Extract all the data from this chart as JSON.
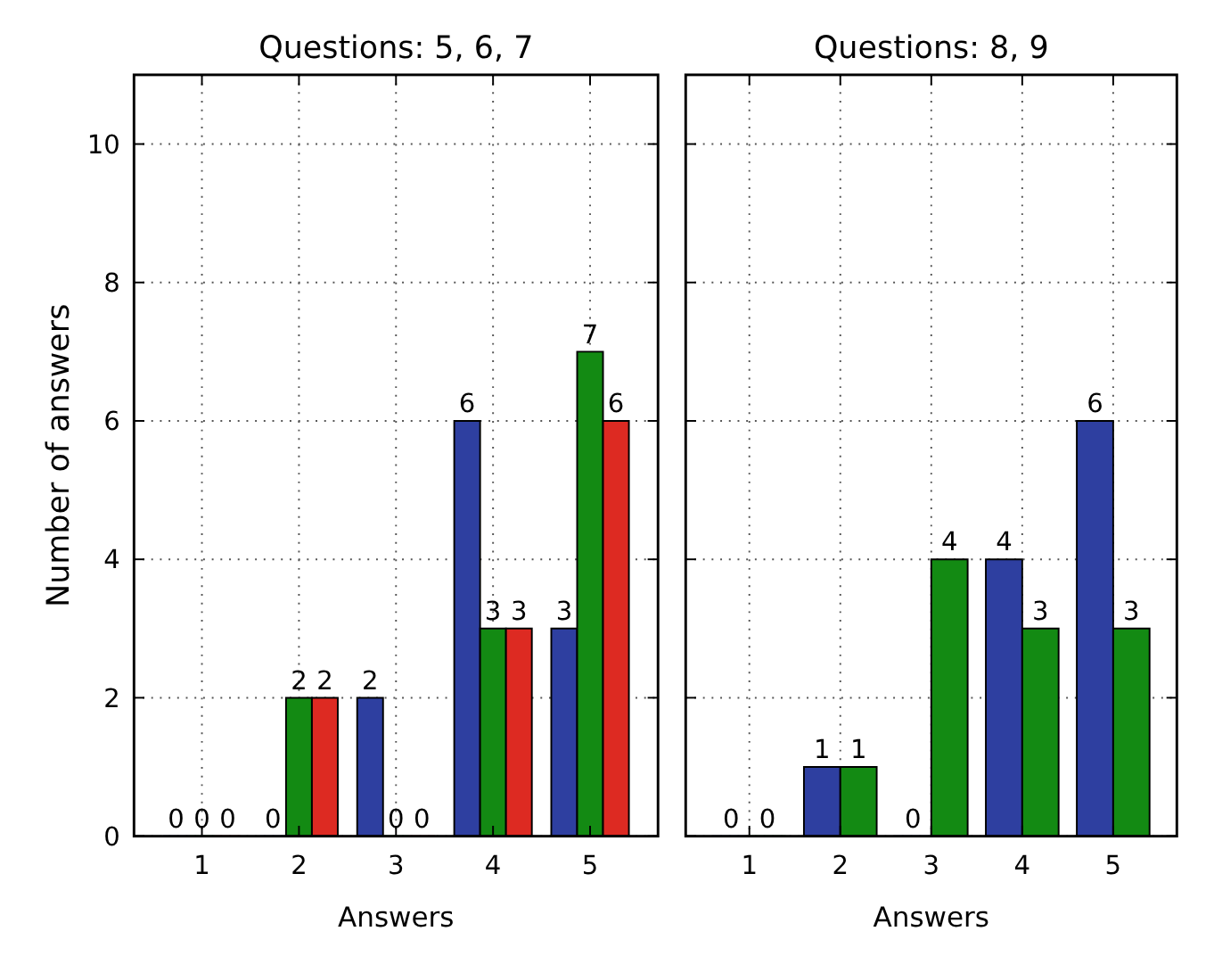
{
  "chart_data": [
    {
      "type": "bar",
      "title": "Questions: 5, 6, 7",
      "xlabel": "Answers",
      "ylabel": "Number of answers",
      "categories": [
        "1",
        "2",
        "3",
        "4",
        "5"
      ],
      "ylim": [
        0,
        11
      ],
      "yticks": [
        0,
        2,
        4,
        6,
        8,
        10
      ],
      "grid": true,
      "data_labels": true,
      "series": [
        {
          "color": "#2e3fa0",
          "values": [
            0,
            0,
            2,
            6,
            3
          ]
        },
        {
          "color": "#138a13",
          "values": [
            0,
            2,
            0,
            3,
            7
          ]
        },
        {
          "color": "#dd2a22",
          "values": [
            0,
            2,
            0,
            3,
            6
          ]
        }
      ]
    },
    {
      "type": "bar",
      "title": "Questions: 8, 9",
      "xlabel": "Answers",
      "categories": [
        "1",
        "2",
        "3",
        "4",
        "5"
      ],
      "ylim": [
        0,
        11
      ],
      "yticks": [
        0,
        2,
        4,
        6,
        8,
        10
      ],
      "grid": true,
      "data_labels": true,
      "tick_labels": "x",
      "series": [
        {
          "color": "#2e3fa0",
          "values": [
            0,
            1,
            0,
            4,
            6
          ]
        },
        {
          "color": "#138a13",
          "values": [
            0,
            1,
            4,
            3,
            3
          ]
        }
      ]
    }
  ]
}
